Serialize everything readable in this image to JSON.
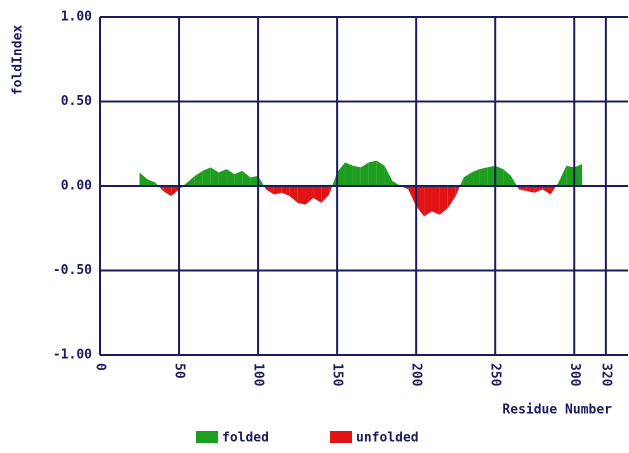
{
  "chart_data": {
    "type": "area",
    "y_label": "foldIndex",
    "x_label": "Residue Number",
    "x": [
      25,
      30,
      35,
      40,
      45,
      50,
      55,
      60,
      65,
      70,
      75,
      80,
      85,
      90,
      95,
      100,
      105,
      110,
      115,
      120,
      125,
      130,
      135,
      140,
      145,
      150,
      155,
      160,
      165,
      170,
      175,
      180,
      185,
      190,
      195,
      200,
      205,
      210,
      215,
      220,
      225,
      230,
      235,
      240,
      245,
      250,
      255,
      260,
      265,
      270,
      275,
      280,
      285,
      290,
      295,
      300,
      305
    ],
    "values": [
      0.08,
      0.04,
      0.02,
      -0.03,
      -0.06,
      -0.02,
      0.02,
      0.06,
      0.09,
      0.11,
      0.08,
      0.1,
      0.07,
      0.09,
      0.05,
      0.06,
      -0.02,
      -0.05,
      -0.04,
      -0.06,
      -0.1,
      -0.11,
      -0.07,
      -0.1,
      -0.05,
      0.08,
      0.14,
      0.12,
      0.11,
      0.14,
      0.15,
      0.12,
      0.03,
      0.0,
      -0.02,
      -0.12,
      -0.18,
      -0.15,
      -0.17,
      -0.13,
      -0.06,
      0.05,
      0.08,
      0.1,
      0.11,
      0.12,
      0.1,
      0.06,
      -0.02,
      -0.03,
      -0.04,
      -0.02,
      -0.05,
      0.02,
      0.12,
      0.11,
      0.13
    ],
    "legend": [
      {
        "name": "folded",
        "color": "#1e9e1e"
      },
      {
        "name": "unfolded",
        "color": "#e01414"
      }
    ],
    "xlim": [
      0,
      334
    ],
    "xticks": [
      0,
      50,
      100,
      150,
      200,
      250,
      300,
      320
    ],
    "ylim": [
      -1,
      1
    ],
    "yticks": [
      {
        "value": 1,
        "label": "1.00"
      },
      {
        "value": 0.5,
        "label": "0.50"
      },
      {
        "value": 0,
        "label": "0.00"
      },
      {
        "value": -0.5,
        "label": "-0.50"
      },
      {
        "value": -1,
        "label": "-1.00"
      }
    ],
    "grid": true
  }
}
